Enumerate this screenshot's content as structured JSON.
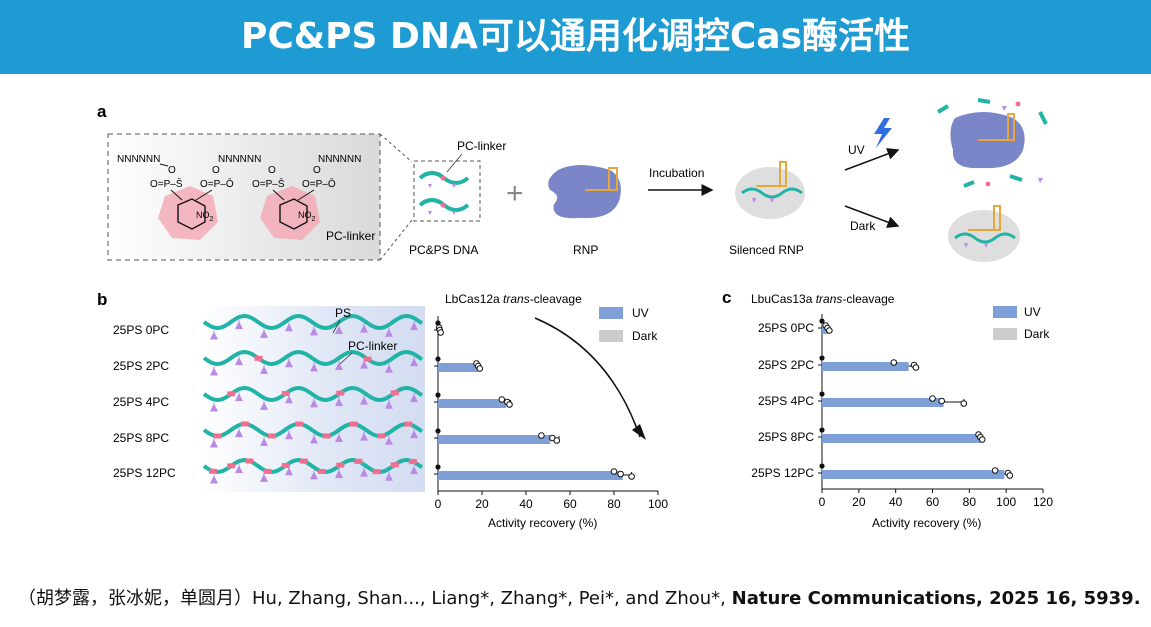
{
  "header": {
    "title": "PC&PS DNA可以通用化调控Cas酶活性",
    "color": "#1f9bd3"
  },
  "panel_a": {
    "label": "a",
    "chem_seq": "NNNNNN",
    "chem_o": "O",
    "chem_ps": "O=P–S̄",
    "chem_po": "O=P–Ō",
    "chem_no2": "NO",
    "chem_no2_sub": "2",
    "chem_linker_label": "PC-linker",
    "pc_linker_label": "PC-linker",
    "pcps_dna_label": "PC&PS DNA",
    "plus": "+",
    "rnp_label": "RNP",
    "incubation_label": "Incubation",
    "silenced_label": "Silenced RNP",
    "uv_label": "UV",
    "dark_label": "Dark"
  },
  "panel_b": {
    "label": "b",
    "rows": [
      "25PS 0PC",
      "25PS 2PC",
      "25PS 4PC",
      "25PS 8PC",
      "25PS 12PC"
    ],
    "ps_label": "PS",
    "pc_linker_label": "PC-linker"
  },
  "chart_data": [
    {
      "type": "bar",
      "orientation": "horizontal",
      "title_main": "LbCas12a ",
      "title_italic": "trans",
      "title_rest": "-cleavage",
      "categories": [
        "25PS 0PC",
        "25PS 2PC",
        "25PS 4PC",
        "25PS 8PC",
        "25PS 12PC"
      ],
      "series": [
        {
          "name": "UV",
          "values": [
            0,
            18,
            31,
            51,
            84
          ]
        },
        {
          "name": "Dark",
          "values": [
            0,
            0,
            0,
            0,
            0
          ]
        }
      ],
      "points": [
        [
          0.5,
          0.8,
          1.2
        ],
        [
          17.5,
          18.3,
          19
        ],
        [
          29,
          31.5,
          32.5
        ],
        [
          47,
          52,
          54
        ],
        [
          80,
          83,
          88
        ]
      ],
      "errors": [
        1,
        1,
        2,
        4,
        4
      ],
      "xlabel": "Activity recovery (%)",
      "xlim": [
        0,
        100
      ],
      "xticks": [
        0,
        20,
        40,
        60,
        80,
        100
      ],
      "legend": "top-right"
    },
    {
      "type": "bar",
      "orientation": "horizontal",
      "title_main": "LbuCas13a ",
      "title_italic": "trans",
      "title_rest": "-cleavage",
      "categories": [
        "25PS 0PC",
        "25PS 2PC",
        "25PS 4PC",
        "25PS 8PC",
        "25PS 12PC"
      ],
      "series": [
        {
          "name": "UV",
          "values": [
            3,
            47,
            66,
            86,
            99
          ]
        },
        {
          "name": "Dark",
          "values": [
            0.5,
            0.5,
            0.5,
            0.5,
            0.5
          ]
        }
      ],
      "points": [
        [
          2,
          3,
          4
        ],
        [
          39,
          50,
          51
        ],
        [
          60,
          65,
          77
        ],
        [
          85,
          86,
          87
        ],
        [
          94,
          101,
          102
        ]
      ],
      "errors": [
        1,
        3,
        11,
        1,
        3
      ],
      "xlabel": "Activity recovery (%)",
      "xlim": [
        0,
        120
      ],
      "xticks": [
        0,
        20,
        40,
        60,
        80,
        100,
        120
      ],
      "legend": "top-right"
    }
  ],
  "colors": {
    "uv": "#7f9fd7",
    "dark": "#cccccc",
    "dna": "#21b3a6",
    "pc": "#f06e8e",
    "ps": "#b88ae6",
    "rnp": "#7b86c8",
    "grna": "#e7a73a"
  },
  "citation": {
    "text": "（胡梦露，张冰妮，单圆月）Hu, Zhang, Shan..., Liang*, Zhang*, Pei*, and Zhou*, ",
    "bold": "Nature Communications, 2025 16, 5939."
  }
}
